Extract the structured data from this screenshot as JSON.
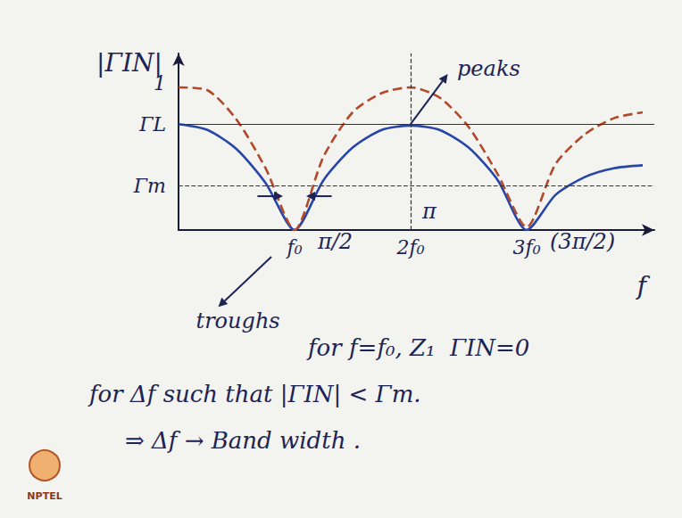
{
  "chart_data": {
    "type": "line",
    "y_label": "|ΓIN|",
    "x_label": "f",
    "x": [
      0,
      0.25,
      0.5,
      0.75,
      1,
      1.25,
      1.5,
      1.75,
      2,
      2.25,
      2.5,
      2.75,
      3,
      3.25,
      3.5,
      3.75,
      4
    ],
    "series": [
      {
        "color": "#2846a8",
        "line_style": "solid",
        "values": [
          0.72,
          0.68,
          0.55,
          0.32,
          0,
          0.34,
          0.56,
          0.68,
          0.71,
          0.68,
          0.56,
          0.34,
          0,
          0.24,
          0.36,
          0.42,
          0.44
        ]
      },
      {
        "color": "#b04a2a",
        "line_style": "dashed",
        "values": [
          0.97,
          0.95,
          0.75,
          0.42,
          0,
          0.5,
          0.8,
          0.93,
          0.97,
          0.9,
          0.7,
          0.38,
          0.02,
          0.45,
          0.65,
          0.76,
          0.8
        ]
      }
    ],
    "xlim": [
      0,
      4.1
    ],
    "xticks": [
      {
        "value": 1,
        "label": "f₀"
      },
      {
        "value": 2,
        "label": "2f₀"
      },
      {
        "value": 3,
        "label": "3f₀"
      }
    ],
    "ylim": [
      0,
      1.2
    ],
    "yticks": [
      {
        "value": 0.3,
        "label": "Γm"
      },
      {
        "value": 0.72,
        "label": "ΓL"
      },
      1
    ],
    "grid": false,
    "reference_lines": [
      {
        "y": 0.72,
        "line_style": "solid"
      },
      {
        "y": 0.3,
        "line_style": "dashed"
      },
      {
        "x": 2,
        "line_style": "dashed"
      }
    ],
    "annotations": [
      {
        "text": "peaks",
        "x": 2.4,
        "y": 1.1
      },
      {
        "text": "troughs",
        "x": 0.15,
        "y": -0.62
      },
      {
        "text": "π/2",
        "x": 1.2,
        "y": -0.08
      },
      {
        "text": "π",
        "x": 2.1,
        "y": 0.13
      },
      {
        "text": "(3π/2)",
        "x": 3.2,
        "y": -0.08
      }
    ],
    "notes": [
      "for f=f₀, Z₁  ΓIN=0",
      "for Δf such that |ΓIN| < Γm.",
      "⇒ Δf → Band width ."
    ],
    "logo": "NPTEL"
  }
}
